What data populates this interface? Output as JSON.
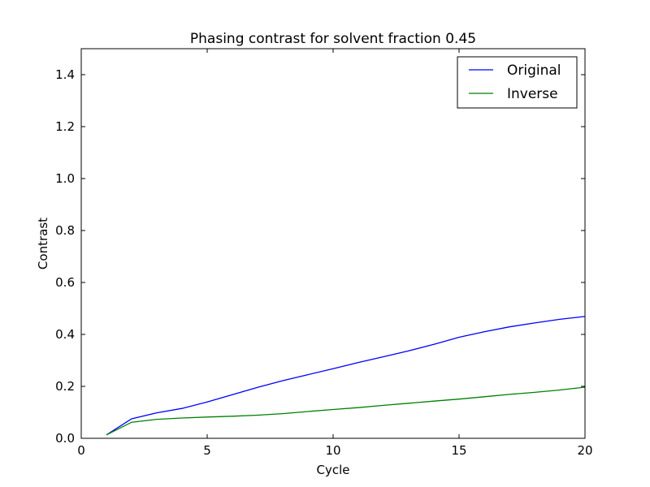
{
  "chart_data": {
    "type": "line",
    "title": "Phasing contrast for solvent fraction 0.45",
    "xlabel": "Cycle",
    "ylabel": "Contrast",
    "xlim": [
      0,
      20
    ],
    "ylim": [
      0.0,
      1.5
    ],
    "x_ticks": [
      "0",
      "5",
      "10",
      "15",
      "20"
    ],
    "y_ticks": [
      "0.0",
      "0.2",
      "0.4",
      "0.6",
      "0.8",
      "1.0",
      "1.2",
      "1.4"
    ],
    "grid": false,
    "legend_position": "top-right",
    "x": [
      1,
      2,
      3,
      4,
      5,
      6,
      7,
      8,
      9,
      10,
      11,
      12,
      13,
      14,
      15,
      16,
      17,
      18,
      19,
      20
    ],
    "series": [
      {
        "name": "Original",
        "color": "#0000ff",
        "values": [
          0.013,
          0.075,
          0.098,
          0.115,
          0.14,
          0.168,
          0.196,
          0.222,
          0.245,
          0.268,
          0.292,
          0.314,
          0.337,
          0.362,
          0.389,
          0.41,
          0.429,
          0.444,
          0.458,
          0.469
        ]
      },
      {
        "name": "Inverse",
        "color": "#008000",
        "values": [
          0.013,
          0.062,
          0.073,
          0.078,
          0.082,
          0.085,
          0.089,
          0.095,
          0.103,
          0.111,
          0.118,
          0.127,
          0.135,
          0.143,
          0.151,
          0.16,
          0.169,
          0.177,
          0.186,
          0.197
        ]
      }
    ]
  }
}
